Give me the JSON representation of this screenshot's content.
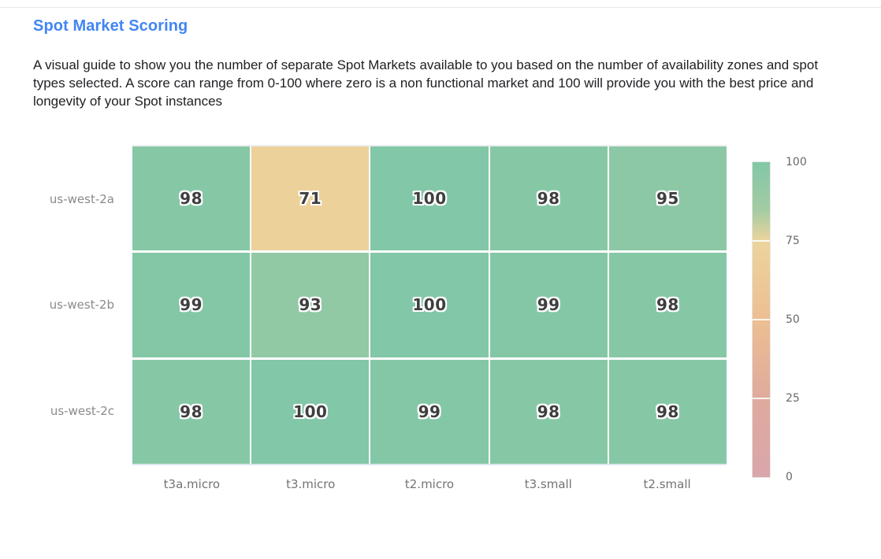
{
  "header": {
    "title": "Spot Market Scoring",
    "title_color": "#4285f4",
    "description": "A visual guide to show you the number of separate Spot Markets available to you based on the number of availability zones and spot types selected. A score can range from 0-100 where zero is a non functional market and 100 will provide you with the best price and longevity of your Spot instances"
  },
  "chart_data": {
    "type": "heatmap",
    "title": "Spot Market Scoring",
    "x_categories": [
      "t3a.micro",
      "t3.micro",
      "t2.micro",
      "t3.small",
      "t2.small"
    ],
    "y_categories": [
      "us-west-2a",
      "us-west-2b",
      "us-west-2c"
    ],
    "values": [
      [
        98,
        71,
        100,
        98,
        95
      ],
      [
        99,
        93,
        100,
        99,
        98
      ],
      [
        98,
        100,
        99,
        98,
        98
      ]
    ],
    "value_range": [
      0,
      100
    ],
    "colorbar_ticks": [
      100,
      75,
      50,
      25,
      0
    ],
    "colorbar_separator_values": [
      75,
      50,
      25
    ],
    "color_scale": [
      [
        0,
        "#d9a6ab"
      ],
      [
        25,
        "#dfaa9d"
      ],
      [
        50,
        "#ecbf93"
      ],
      [
        75,
        "#ecd49d"
      ],
      [
        85,
        "#a3cba3"
      ],
      [
        100,
        "#82c7a7"
      ]
    ],
    "legend_position": "right",
    "grid_gap_color": "#ffffff",
    "cell_text_color": "#3f3f3f",
    "y_axis_label_color": "#8a8a8a",
    "x_axis_label_color": "#737373"
  }
}
